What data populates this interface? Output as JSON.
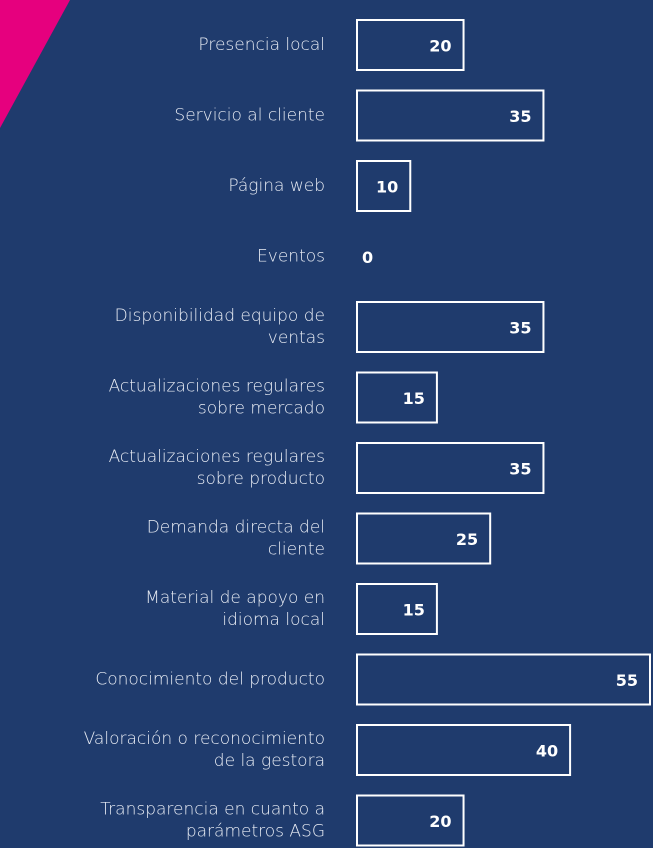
{
  "chart_data": {
    "type": "bar",
    "orientation": "horizontal",
    "categories": [
      [
        "Presencia local"
      ],
      [
        "Servicio al cliente"
      ],
      [
        "Página web"
      ],
      [
        "Eventos"
      ],
      [
        "Disponibilidad equipo de",
        "ventas"
      ],
      [
        "Actualizaciones regulares",
        "sobre mercado"
      ],
      [
        "Actualizaciones regulares",
        "sobre producto"
      ],
      [
        "Demanda directa del",
        "cliente"
      ],
      [
        "Material de apoyo en",
        "idioma local"
      ],
      [
        "Conocimiento del producto"
      ],
      [
        "Valoración o reconocimiento",
        "de la gestora"
      ],
      [
        "Transparencia en cuanto a",
        "parámetros ASG"
      ]
    ],
    "values": [
      20,
      35,
      10,
      0,
      35,
      15,
      35,
      25,
      15,
      55,
      40,
      20
    ],
    "color": "#ffffff"
  }
}
